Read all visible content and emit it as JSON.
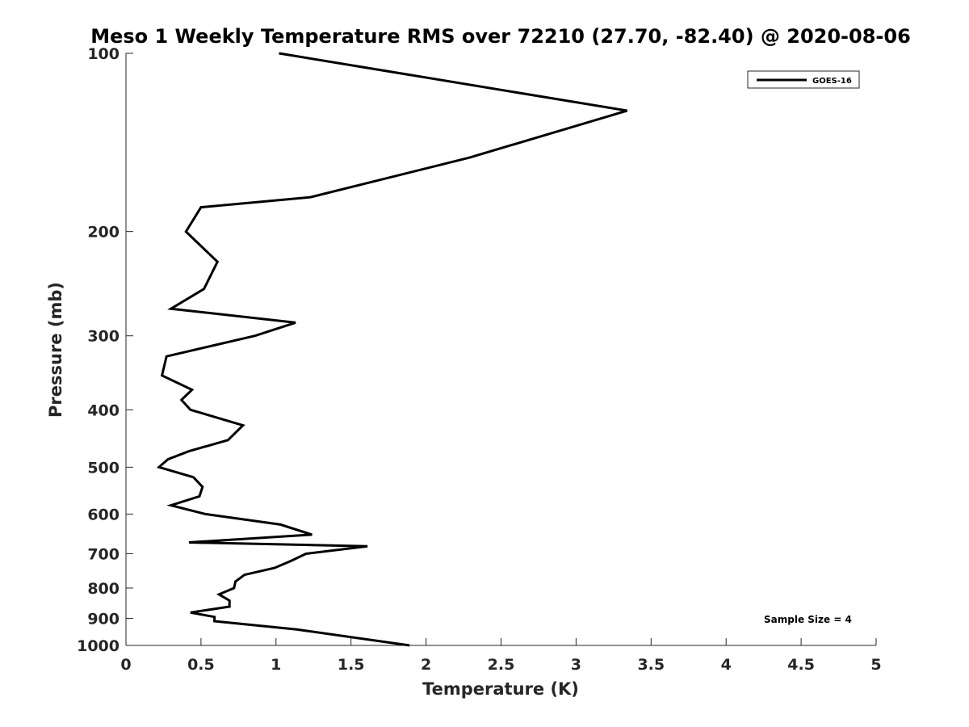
{
  "chart_data": {
    "type": "line",
    "title": "Meso 1 Weekly Temperature RMS over 72210 (27.70, -82.40) @ 2020-08-06",
    "xlabel": "Temperature (K)",
    "ylabel": "Pressure (mb)",
    "xlim": [
      0,
      5
    ],
    "ylim": [
      100,
      1000
    ],
    "y_scale": "log",
    "y_reversed": true,
    "x_ticks": [
      "0",
      "0.5",
      "1",
      "1.5",
      "2",
      "2.5",
      "3",
      "3.5",
      "4",
      "4.5",
      "5"
    ],
    "x_tick_values": [
      0,
      0.5,
      1,
      1.5,
      2,
      2.5,
      3,
      3.5,
      4,
      4.5,
      5
    ],
    "y_ticks": [
      "100",
      "200",
      "300",
      "400",
      "500",
      "600",
      "700",
      "800",
      "900",
      "1000"
    ],
    "y_tick_values": [
      100,
      200,
      300,
      400,
      500,
      600,
      700,
      800,
      900,
      1000
    ],
    "grid": false,
    "legend_position": "top-right",
    "series": [
      {
        "name": "GOES-16",
        "color": "#000000",
        "points": [
          [
            1.02,
            100
          ],
          [
            3.34,
            125
          ],
          [
            2.29,
            150
          ],
          [
            1.23,
            175
          ],
          [
            0.5,
            182
          ],
          [
            0.4,
            200
          ],
          [
            0.61,
            225
          ],
          [
            0.52,
            250
          ],
          [
            0.3,
            270
          ],
          [
            1.13,
            285
          ],
          [
            0.86,
            300
          ],
          [
            0.27,
            325
          ],
          [
            0.24,
            350
          ],
          [
            0.44,
            370
          ],
          [
            0.37,
            385
          ],
          [
            0.43,
            400
          ],
          [
            0.78,
            425
          ],
          [
            0.68,
            450
          ],
          [
            0.42,
            470
          ],
          [
            0.28,
            485
          ],
          [
            0.22,
            500
          ],
          [
            0.45,
            520
          ],
          [
            0.51,
            540
          ],
          [
            0.49,
            560
          ],
          [
            0.3,
            580
          ],
          [
            0.53,
            600
          ],
          [
            1.03,
            625
          ],
          [
            1.24,
            650
          ],
          [
            0.42,
            670
          ],
          [
            1.61,
            680
          ],
          [
            1.2,
            700
          ],
          [
            1.1,
            720
          ],
          [
            0.99,
            740
          ],
          [
            0.79,
            760
          ],
          [
            0.73,
            780
          ],
          [
            0.72,
            800
          ],
          [
            0.62,
            820
          ],
          [
            0.69,
            840
          ],
          [
            0.69,
            860
          ],
          [
            0.43,
            880
          ],
          [
            0.59,
            895
          ],
          [
            0.59,
            910
          ],
          [
            1.14,
            940
          ],
          [
            1.89,
            1000
          ]
        ]
      }
    ],
    "annotations": [
      "Sample Size = 4"
    ]
  }
}
